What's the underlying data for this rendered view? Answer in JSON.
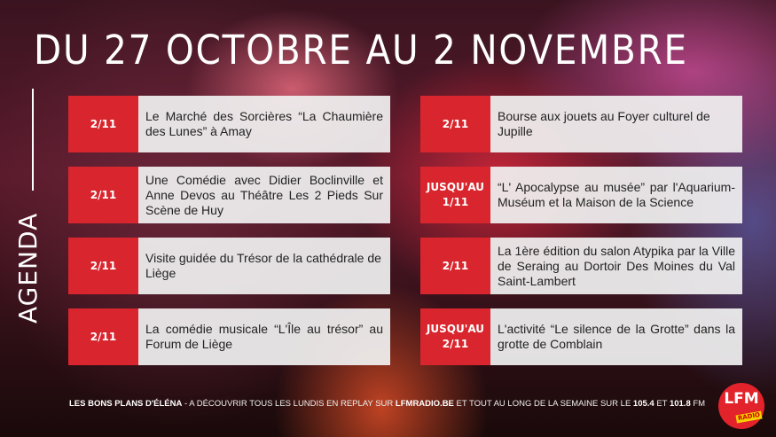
{
  "title": "DU 27 OCTOBRE AU 2 NOVEMBRE",
  "side_label": "AGENDA",
  "events_left": [
    {
      "date": "2/11",
      "text": "Le Marché des Sorcières “La Chaumière des Lunes” à Amay"
    },
    {
      "date": "2/11",
      "text": "Une Comédie avec Didier Boclinville et Anne Devos au Théâtre Les 2 Pieds Sur Scène de Huy"
    },
    {
      "date": "2/11",
      "text": "Visite guidée du Trésor de la cathédrale de Liège"
    },
    {
      "date": "2/11",
      "text": "La comédie musicale “L'Île au trésor” au Forum de Liège"
    }
  ],
  "events_right": [
    {
      "date": "2/11",
      "text": "Bourse aux jouets au Foyer culturel de Jupille"
    },
    {
      "date": "JUSQU'AU 1/11",
      "text": "“L' Apocalypse au musée” par l'Aquarium-Muséum et la Maison de la Science"
    },
    {
      "date": "2/11",
      "text": "La 1ère édition du salon Atypika par la Ville de Seraing  au Dortoir Des Moines du Val Saint-Lambert"
    },
    {
      "date": "JUSQU'AU 2/11",
      "text": "L'activité  “Le silence de la Grotte” dans la grotte de Comblain"
    }
  ],
  "footer": {
    "show": "LES BONS PLANS D'ÉLÉNA",
    "sep": " - A DÉCOUVRIR TOUS LES LUNDIS EN REPLAY SUR ",
    "site": "LFMRADIO.BE",
    "mid": " ET TOUT AU LONG DE LA SEMAINE SUR LE ",
    "f1": "105.4",
    "et": " ET ",
    "f2": "101.8",
    "fm": " FM"
  },
  "logo": {
    "main": "LFM",
    "sub": "RADIO"
  },
  "colors": {
    "accent": "#d9262e"
  }
}
